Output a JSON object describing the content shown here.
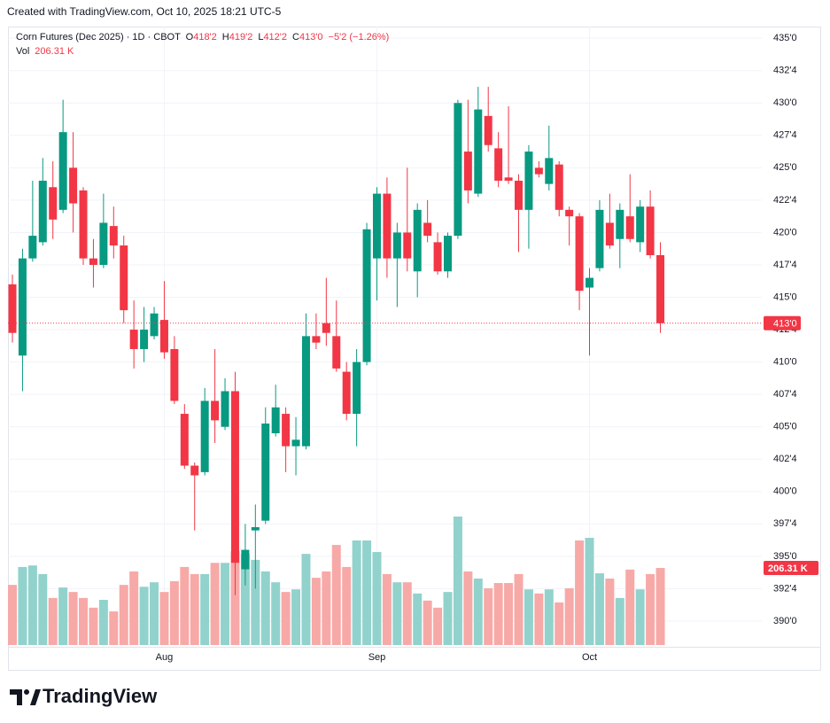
{
  "created": "Created with TradingView.com, Oct 10, 2025 18:21 UTC-5",
  "brand": "TradingView",
  "chart_data": {
    "type": "candlestick",
    "title": "Corn Futures (Dec 2025) · 1D · CBOT",
    "legend": [
      {
        "label": "O",
        "value": "418'2"
      },
      {
        "label": "H",
        "value": "419'2"
      },
      {
        "label": "L",
        "value": "412'2"
      },
      {
        "label": "C",
        "value": "413'0"
      }
    ],
    "change": "−5'2 (−1.26%)",
    "volume_title": "Vol",
    "volume_label": "206.31 K",
    "up_color": "#089981",
    "down_color": "#f23645",
    "up_volume_color": "#92d2cc",
    "down_volume_color": "#f7a9a7",
    "grid": true,
    "last_price_line": true,
    "categories": [
      null,
      null,
      null,
      null,
      null,
      null,
      null,
      null,
      null,
      null,
      null,
      null,
      null,
      null,
      null,
      "Aug",
      null,
      null,
      null,
      null,
      null,
      null,
      null,
      null,
      null,
      null,
      null,
      null,
      null,
      null,
      null,
      null,
      null,
      null,
      null,
      null,
      "Sep",
      null,
      null,
      null,
      null,
      null,
      null,
      null,
      null,
      null,
      null,
      null,
      null,
      null,
      null,
      null,
      null,
      null,
      null,
      null,
      null,
      "Oct",
      null,
      null,
      null,
      null,
      null,
      null,
      null
    ],
    "open": [
      416,
      410.5,
      418,
      419.25,
      423.5,
      421.75,
      425,
      423.25,
      418,
      417.5,
      420.5,
      419,
      412.5,
      411,
      412,
      413.25,
      411,
      406,
      402,
      401.5,
      407,
      405,
      407.75,
      394,
      397,
      397.75,
      404.5,
      406,
      403.5,
      403.5,
      412,
      413,
      412,
      409.25,
      406,
      410,
      418,
      423,
      418,
      420,
      417,
      420.75,
      419.25,
      417,
      419.75,
      426.25,
      423,
      429,
      426.5,
      424.25,
      424,
      421.75,
      425,
      423.75,
      425.25,
      421.75,
      421.25,
      415.75,
      417.25,
      420.75,
      419.5,
      421.25,
      419.25,
      422,
      418.25
    ],
    "high": [
      416.75,
      418.75,
      424,
      425.75,
      425.5,
      430.25,
      427.75,
      423.5,
      419.5,
      423,
      422,
      419.75,
      414.75,
      414.25,
      414.25,
      416.25,
      412,
      406.75,
      402.25,
      408,
      411,
      408.75,
      409.25,
      397.5,
      399,
      406.5,
      408.25,
      406.5,
      405.75,
      413.75,
      413.75,
      416.5,
      414.75,
      410,
      411,
      420.75,
      423.5,
      424.25,
      420.75,
      425,
      422.25,
      422.5,
      420,
      420,
      430.25,
      430.25,
      431.25,
      431.25,
      427.75,
      429.75,
      424.5,
      426.75,
      425.5,
      428.25,
      425.5,
      422,
      421.5,
      417.25,
      422.5,
      423,
      422.25,
      424.5,
      422.5,
      423.25,
      419.25
    ],
    "low": [
      411.5,
      407.75,
      417.75,
      419,
      419.5,
      421.5,
      420,
      417.5,
      415.75,
      417.25,
      418,
      413,
      409.5,
      410,
      411.75,
      410.25,
      406.75,
      401.75,
      397,
      401.25,
      403.75,
      404.75,
      392,
      392.75,
      392.5,
      397.5,
      404.25,
      401.5,
      401.25,
      403.25,
      411,
      411.25,
      409.25,
      405.5,
      403.5,
      409.75,
      414.75,
      416.5,
      414.25,
      417,
      415,
      419.25,
      416.75,
      416.5,
      419.5,
      422.25,
      422.75,
      426.25,
      423.5,
      423.75,
      418.5,
      418.75,
      424.25,
      423.25,
      421.25,
      419,
      414,
      410.5,
      417,
      418.75,
      417.25,
      419.25,
      418.5,
      418,
      412.25
    ],
    "close": [
      412.25,
      418,
      419.75,
      424,
      421,
      427.75,
      422.25,
      418,
      417.5,
      420.75,
      419,
      414,
      411,
      412.5,
      413.75,
      410.75,
      407,
      402,
      401.25,
      407,
      405.5,
      407.75,
      394.5,
      395.5,
      397.25,
      405.25,
      406.5,
      403.5,
      404,
      412,
      411.5,
      412.25,
      409.5,
      406,
      410,
      420.25,
      423,
      418,
      420,
      418,
      421.75,
      419.75,
      417,
      419.75,
      430,
      423.25,
      429.5,
      426.75,
      424,
      424,
      421.75,
      426.25,
      424.5,
      425.75,
      421.75,
      421.25,
      415.5,
      416.5,
      421.75,
      419,
      421.75,
      419.5,
      422,
      418.25,
      413
    ],
    "volume": [
      161,
      209,
      213,
      190,
      126,
      154,
      142,
      126,
      100,
      121,
      90,
      161,
      197,
      156,
      168,
      142,
      171,
      209,
      190,
      190,
      220,
      220,
      251,
      244,
      228,
      197,
      168,
      142,
      149,
      244,
      180,
      197,
      268,
      209,
      280,
      280,
      249,
      190,
      168,
      168,
      138,
      119,
      100,
      142,
      344,
      197,
      178,
      152,
      166,
      166,
      190,
      149,
      138,
      149,
      114,
      152,
      280,
      287,
      192,
      178,
      126,
      202,
      149,
      190,
      206.31
    ],
    "ylim": [
      388.15,
      435.9
    ],
    "yticks": [
      {
        "value": 435,
        "label": "435'0"
      },
      {
        "value": 432.5,
        "label": "432'4"
      },
      {
        "value": 430,
        "label": "430'0"
      },
      {
        "value": 427.5,
        "label": "427'4"
      },
      {
        "value": 425,
        "label": "425'0"
      },
      {
        "value": 422.5,
        "label": "422'4"
      },
      {
        "value": 420,
        "label": "420'0"
      },
      {
        "value": 417.5,
        "label": "417'4"
      },
      {
        "value": 415,
        "label": "415'0"
      },
      {
        "value": 412.5,
        "label": "412'4"
      },
      {
        "value": 410,
        "label": "410'0"
      },
      {
        "value": 407.5,
        "label": "407'4"
      },
      {
        "value": 405,
        "label": "405'0"
      },
      {
        "value": 402.5,
        "label": "402'4"
      },
      {
        "value": 400,
        "label": "400'0"
      },
      {
        "value": 397.5,
        "label": "397'4"
      },
      {
        "value": 395,
        "label": "395'0"
      },
      {
        "value": 392.5,
        "label": "392'4"
      },
      {
        "value": 390,
        "label": "390'0"
      }
    ]
  }
}
